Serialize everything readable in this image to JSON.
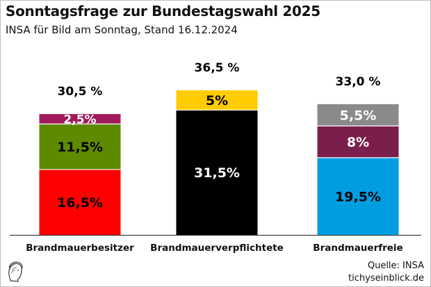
{
  "header": {
    "title": "Sonntagsfrage zur Bundestagswahl 2025",
    "subtitle": "INSA für Bild am Sonntag, Stand 16.12.2024"
  },
  "footer": {
    "source_line": "Quelle: INSA",
    "site_line": "tichyseinblick.de"
  },
  "logo": {
    "icon": "classical-head-logo"
  },
  "chart_data": {
    "type": "bar",
    "stacked": true,
    "title": "Sonntagsfrage zur Bundestagswahl 2025",
    "subtitle": "INSA für Bild am Sonntag, Stand 16.12.2024",
    "xlabel": "",
    "ylabel": "",
    "ylim": [
      0,
      40
    ],
    "grid": false,
    "legend": "none",
    "categories": [
      "Brandmauerbesitzer",
      "Brandmauerverpflichtete",
      "Brandmauerfreie"
    ],
    "totals": [
      {
        "value": 30.5,
        "label": "30,5 %"
      },
      {
        "value": 36.5,
        "label": "36,5 %"
      },
      {
        "value": 33.0,
        "label": "33,0 %"
      }
    ],
    "bars": [
      {
        "category": "Brandmauerbesitzer",
        "segments": [
          {
            "value": 16.5,
            "label": "16,5%",
            "color": "#ff0000",
            "text_color": "#000000"
          },
          {
            "value": 11.5,
            "label": "11,5%",
            "color": "#5e8a00",
            "text_color": "#000000"
          },
          {
            "value": 2.5,
            "label": "2,5%",
            "color": "#a0195a",
            "text_color": "#ffffff"
          }
        ]
      },
      {
        "category": "Brandmauerverpflichtete",
        "segments": [
          {
            "value": 31.5,
            "label": "31,5%",
            "color": "#000000",
            "text_color": "#ffffff"
          },
          {
            "value": 5,
            "label": "5%",
            "color": "#ffcc00",
            "text_color": "#000000"
          }
        ]
      },
      {
        "category": "Brandmauerfreie",
        "segments": [
          {
            "value": 19.5,
            "label": "19,5%",
            "color": "#009ee0",
            "text_color": "#000000"
          },
          {
            "value": 8,
            "label": "8%",
            "color": "#7a1f4b",
            "text_color": "#ffffff"
          },
          {
            "value": 5.5,
            "label": "5,5%",
            "color": "#8a8a8a",
            "text_color": "#ffffff"
          }
        ]
      }
    ]
  }
}
